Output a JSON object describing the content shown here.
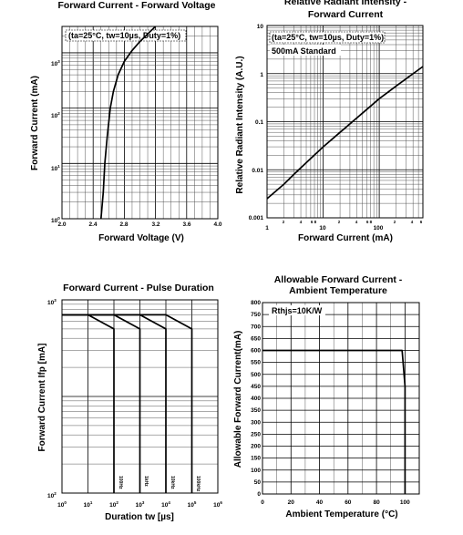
{
  "chart_data": [
    {
      "type": "line",
      "title": "Forward Current - Forward Voltage",
      "xlabel": "Forward Voltage (V)",
      "ylabel": "Forward Current (mA)",
      "annotation": "(ta=25°C, tw=10µs, Duty=1%)",
      "x_ticks": [
        "2.0",
        "2.4",
        "2.8",
        "3.2",
        "3.6",
        "4.0"
      ],
      "y_ticks": [
        {
          "base": "10",
          "exp": "0"
        },
        {
          "base": "10",
          "exp": "1"
        },
        {
          "base": "10",
          "exp": "2"
        },
        {
          "base": "10",
          "exp": "3"
        }
      ],
      "xlim": [
        2.0,
        4.0
      ],
      "ylim": [
        1,
        3000
      ],
      "y_scale": "log",
      "grid": true,
      "series": [
        {
          "x": [
            2.5,
            2.53,
            2.55,
            2.58,
            2.62,
            2.66,
            2.72,
            2.8,
            2.9,
            3.0,
            3.1,
            3.2
          ],
          "y": [
            1,
            3,
            10,
            30,
            100,
            200,
            400,
            700,
            1100,
            1600,
            2200,
            3000
          ]
        }
      ]
    },
    {
      "type": "line",
      "title": "Relative Radiant Intensity - Forward Current",
      "xlabel": "Forward Current (mA)",
      "ylabel": "Relative Radiant Intensity (A.U.)",
      "annotation": "(ta=25°C, tw=10µs, Duty=1%)",
      "annotation2": "500mA Standard",
      "x_ticks": [
        "1",
        "10",
        "100"
      ],
      "x_minor_labels": [
        "2",
        "4",
        "6 8",
        "2",
        "4",
        "6 8",
        "2",
        "4",
        "6"
      ],
      "y_ticks": [
        "0.001",
        "0.01",
        "0.1",
        "1",
        "10"
      ],
      "xlim": [
        1,
        600
      ],
      "ylim": [
        0.001,
        10
      ],
      "x_scale": "log",
      "y_scale": "log",
      "grid": true,
      "series": [
        {
          "x": [
            1,
            2,
            3,
            5,
            10,
            20,
            50,
            100,
            200,
            600
          ],
          "y": [
            0.0025,
            0.005,
            0.008,
            0.014,
            0.03,
            0.06,
            0.15,
            0.3,
            0.55,
            1.4
          ]
        }
      ]
    },
    {
      "type": "line",
      "title": "Forward Current - Pulse Duration",
      "xlabel": "Duration tw [µs]",
      "ylabel": "Forward Current Ifp [mA]",
      "x_ticks": [
        {
          "base": "10",
          "exp": "0"
        },
        {
          "base": "10",
          "exp": "1"
        },
        {
          "base": "10",
          "exp": "2"
        },
        {
          "base": "10",
          "exp": "3"
        },
        {
          "base": "10",
          "exp": "4"
        },
        {
          "base": "10",
          "exp": "5"
        },
        {
          "base": "10",
          "exp": "6"
        }
      ],
      "y_ticks": [
        {
          "base": "10",
          "exp": "2"
        },
        {
          "base": "10",
          "exp": "3"
        }
      ],
      "xlim": [
        1,
        1000000
      ],
      "ylim": [
        100,
        10000
      ],
      "x_scale": "log",
      "y_scale": "log",
      "grid": true,
      "series": [
        {
          "name": "100Hz",
          "x": [
            1,
            10,
            100,
            100
          ],
          "y": [
            7000,
            7000,
            5000,
            100
          ]
        },
        {
          "name": "1kHz",
          "x": [
            1,
            100,
            1000,
            1000
          ],
          "y": [
            7000,
            7000,
            5000,
            100
          ]
        },
        {
          "name": "10kHz",
          "x": [
            1,
            1000,
            10000,
            10000
          ],
          "y": [
            7000,
            7000,
            5000,
            100
          ]
        },
        {
          "name": "100kHz",
          "x": [
            1,
            10000,
            100000,
            100000
          ],
          "y": [
            7000,
            7000,
            5000,
            100
          ]
        }
      ]
    },
    {
      "type": "line",
      "title": "Allowable Forward Current - Ambient Temperature",
      "xlabel": "Ambient Temperature (°C)",
      "ylabel": "Allowable Forward Current(mA)",
      "annotation": "Rthjs=10K/W",
      "x_ticks": [
        "0",
        "20",
        "40",
        "60",
        "80",
        "100"
      ],
      "y_ticks": [
        "0",
        "50",
        "100",
        "150",
        "200",
        "250",
        "300",
        "350",
        "400",
        "450",
        "500",
        "550",
        "600",
        "650",
        "700",
        "750",
        "800"
      ],
      "xlim": [
        0,
        110
      ],
      "ylim": [
        0,
        800
      ],
      "grid": true,
      "series": [
        {
          "x": [
            0,
            98,
            100,
            100
          ],
          "y": [
            600,
            600,
            450,
            0
          ]
        }
      ]
    }
  ]
}
